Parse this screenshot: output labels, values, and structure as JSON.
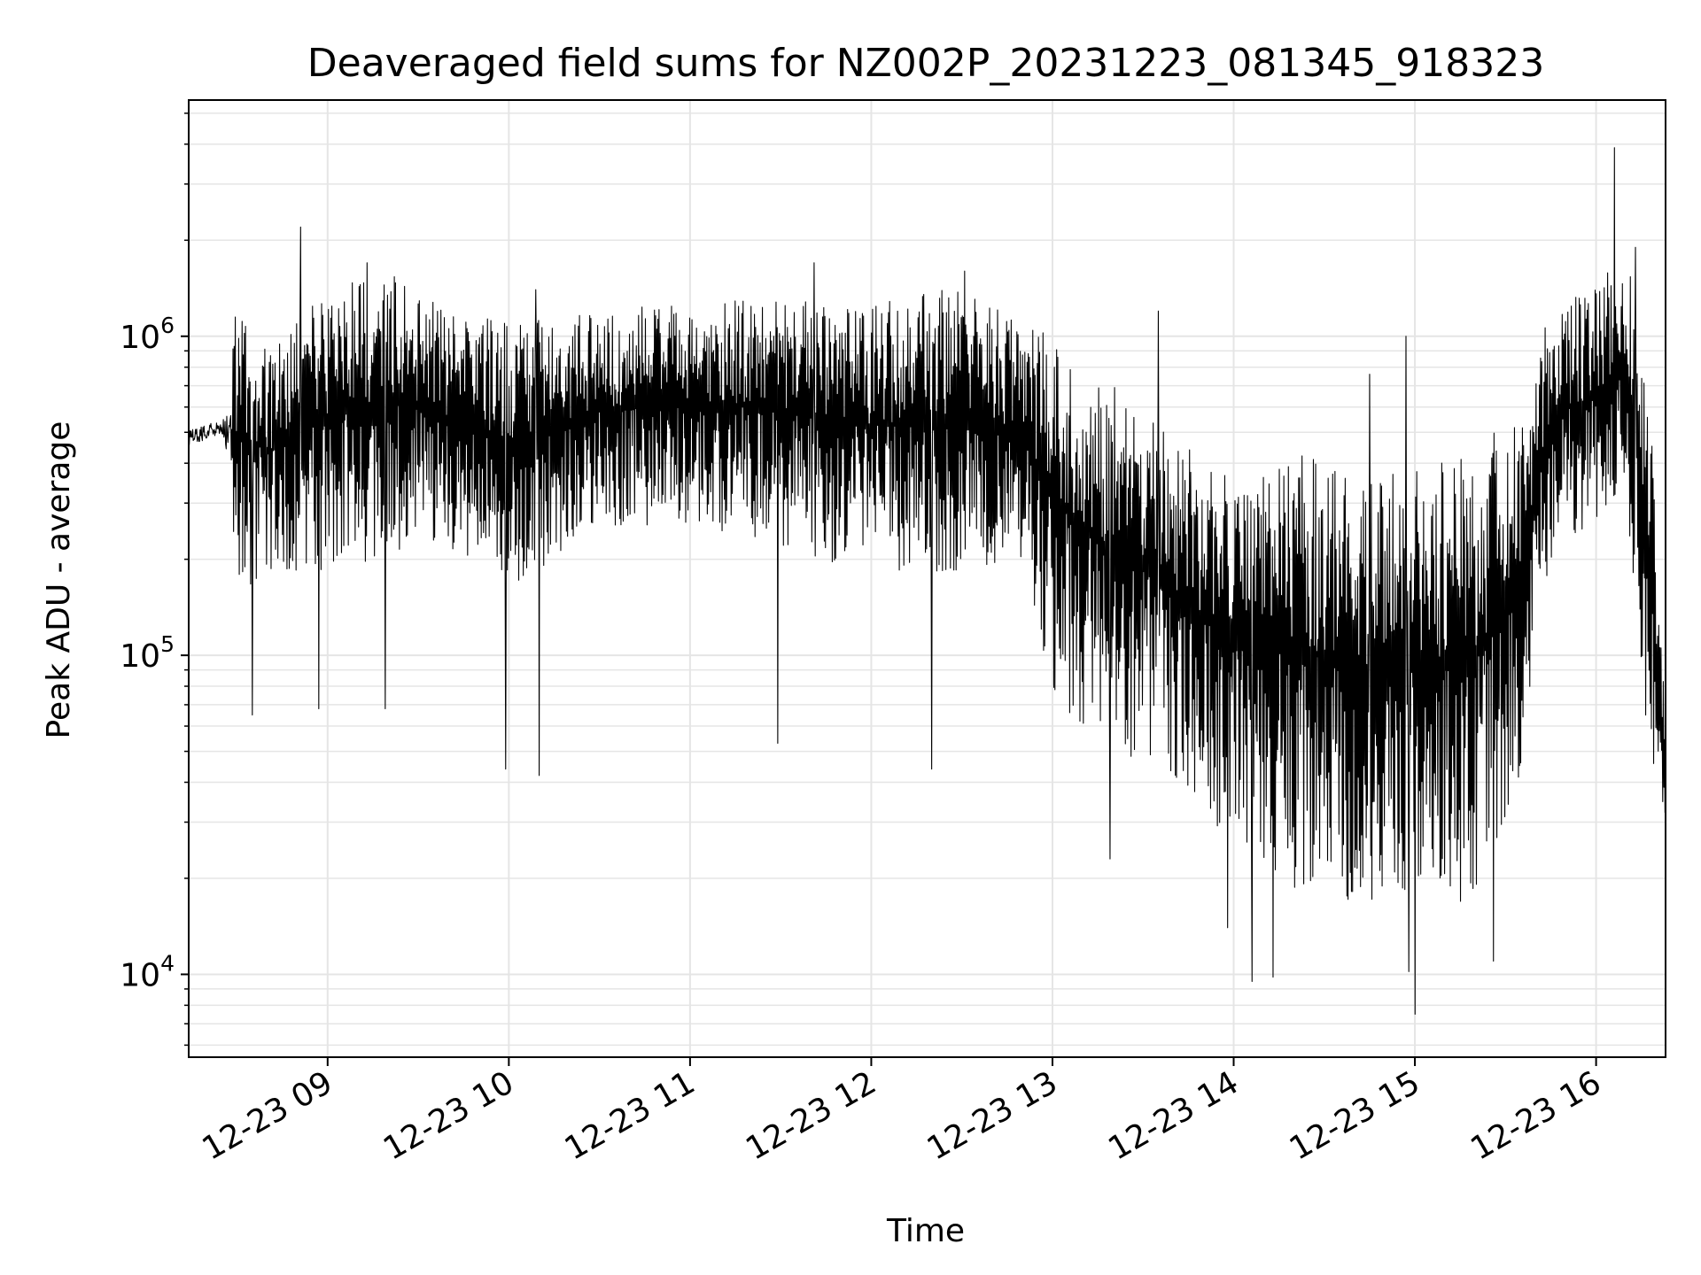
{
  "chart_data": {
    "type": "line",
    "title": "Deaveraged field sums for NZ002P_20231223_081345_918323",
    "xlabel": "Time",
    "ylabel": "Peak ADU - average",
    "yscale": "log",
    "ylim": [
      5500,
      5500000
    ],
    "xlim": [
      "12-23 08:14",
      "12-23 16:23"
    ],
    "grid": true,
    "grid_minor": true,
    "line_color": "#000000",
    "grid_color": "#e5e5e5",
    "x_ticks": [
      {
        "t": "12-23 09:00",
        "label": "12-23 09"
      },
      {
        "t": "12-23 10:00",
        "label": "12-23 10"
      },
      {
        "t": "12-23 11:00",
        "label": "12-23 11"
      },
      {
        "t": "12-23 12:00",
        "label": "12-23 12"
      },
      {
        "t": "12-23 13:00",
        "label": "12-23 13"
      },
      {
        "t": "12-23 14:00",
        "label": "12-23 14"
      },
      {
        "t": "12-23 15:00",
        "label": "12-23 15"
      },
      {
        "t": "12-23 16:00",
        "label": "12-23 16"
      }
    ],
    "y_ticks": [
      {
        "value": 10000,
        "base": "10",
        "exp": "4"
      },
      {
        "value": 100000,
        "base": "10",
        "exp": "5"
      },
      {
        "value": 1000000,
        "base": "10",
        "exp": "6"
      }
    ],
    "series": [
      {
        "envelope_t": [
          "12-23 08:14",
          "12-23 08:20",
          "12-23 08:25",
          "12-23 08:30",
          "12-23 08:40",
          "12-23 09:00",
          "12-23 09:20",
          "12-23 09:40",
          "12-23 10:00",
          "12-23 10:30",
          "12-23 11:00",
          "12-23 11:30",
          "12-23 12:00",
          "12-23 12:30",
          "12-23 12:50",
          "12-23 13:00",
          "12-23 13:20",
          "12-23 13:40",
          "12-23 14:00",
          "12-23 14:20",
          "12-23 14:40",
          "12-23 15:00",
          "12-23 15:20",
          "12-23 15:35",
          "12-23 15:45",
          "12-23 16:00",
          "12-23 16:10",
          "12-23 16:18",
          "12-23 16:23"
        ],
        "envelope_low": [
          400000,
          420000,
          450000,
          150000,
          180000,
          180000,
          200000,
          220000,
          160000,
          250000,
          260000,
          220000,
          180000,
          180000,
          200000,
          70000,
          50000,
          40000,
          25000,
          18000,
          17000,
          16000,
          17000,
          40000,
          200000,
          250000,
          300000,
          40000,
          30000
        ],
        "envelope_high": [
          580000,
          600000,
          600000,
          1300000,
          900000,
          1400000,
          1600000,
          1200000,
          1100000,
          1200000,
          1300000,
          1300000,
          1250000,
          1450000,
          1100000,
          1000000,
          700000,
          500000,
          350000,
          450000,
          350000,
          400000,
          450000,
          600000,
          1300000,
          1400000,
          2000000,
          600000,
          60000
        ],
        "spikes_low": [
          {
            "t": "12-23 08:35",
            "value": 65000
          },
          {
            "t": "12-23 08:57",
            "value": 68000
          },
          {
            "t": "12-23 09:19",
            "value": 68000
          },
          {
            "t": "12-23 09:59",
            "value": 44000
          },
          {
            "t": "12-23 10:10",
            "value": 42000
          },
          {
            "t": "12-23 11:29",
            "value": 53000
          },
          {
            "t": "12-23 12:20",
            "value": 44000
          },
          {
            "t": "12-23 13:19",
            "value": 23000
          },
          {
            "t": "12-23 13:58",
            "value": 14000
          },
          {
            "t": "12-23 14:06",
            "value": 9500
          },
          {
            "t": "12-23 14:13",
            "value": 9800
          },
          {
            "t": "12-23 14:58",
            "value": 10200
          },
          {
            "t": "12-23 15:00",
            "value": 7500
          },
          {
            "t": "12-23 15:26",
            "value": 11000
          }
        ],
        "spikes_high": [
          {
            "t": "12-23 08:51",
            "value": 2200000
          },
          {
            "t": "12-23 09:13",
            "value": 1700000
          },
          {
            "t": "12-23 10:09",
            "value": 1400000
          },
          {
            "t": "12-23 11:41",
            "value": 1700000
          },
          {
            "t": "12-23 12:31",
            "value": 1600000
          },
          {
            "t": "12-23 13:35",
            "value": 1200000
          },
          {
            "t": "12-23 14:57",
            "value": 1000000
          },
          {
            "t": "12-23 14:45",
            "value": 760000
          },
          {
            "t": "12-23 16:06",
            "value": 3900000
          },
          {
            "t": "12-23 16:13",
            "value": 1900000
          }
        ]
      }
    ]
  }
}
